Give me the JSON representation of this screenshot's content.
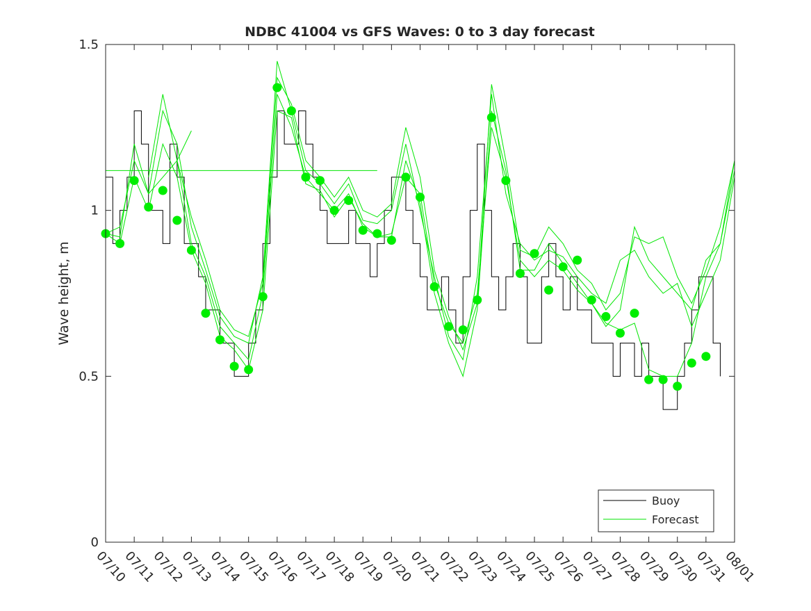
{
  "chart_data": {
    "type": "line",
    "title": "NDBC 41004 vs GFS Waves: 0 to 3 day forecast",
    "xlabel": "",
    "ylabel": "Wave height, m",
    "x_range_days": [
      0,
      22
    ],
    "ylim": [
      0,
      1.5
    ],
    "y_ticks": [
      0,
      0.5,
      1,
      1.5
    ],
    "y_tick_labels": [
      "0",
      "0.5",
      "1",
      "1.5"
    ],
    "x_tick_labels": [
      "07/10",
      "07/11",
      "07/12",
      "07/13",
      "07/14",
      "07/15",
      "07/16",
      "07/17",
      "07/18",
      "07/19",
      "07/20",
      "07/21",
      "07/22",
      "07/23",
      "07/24",
      "07/25",
      "07/26",
      "07/27",
      "07/28",
      "07/29",
      "07/30",
      "07/31",
      "08/01"
    ],
    "grid": false,
    "legend_position": "bottom-right",
    "colors": {
      "buoy": "#000000",
      "forecast": "#00e600",
      "markers": "#00ee00"
    },
    "legend": [
      "Buoy",
      "Forecast"
    ],
    "buoy_series": {
      "name": "Buoy",
      "day": [
        0,
        0.25,
        0.5,
        0.75,
        1,
        1.25,
        1.5,
        1.75,
        2,
        2.25,
        2.5,
        2.75,
        3,
        3.25,
        3.5,
        3.75,
        4,
        4.25,
        4.5,
        4.75,
        5,
        5.25,
        5.5,
        5.75,
        6,
        6.25,
        6.5,
        6.75,
        7,
        7.25,
        7.5,
        7.75,
        8,
        8.25,
        8.5,
        8.75,
        9,
        9.25,
        9.5,
        9.75,
        10,
        10.25,
        10.5,
        10.75,
        11,
        11.25,
        11.5,
        11.75,
        12,
        12.25,
        12.5,
        12.75,
        13,
        13.25,
        13.5,
        13.75,
        14,
        14.25,
        14.5,
        14.75,
        15,
        15.25,
        15.5,
        15.75,
        16,
        16.25,
        16.5,
        16.75,
        17,
        17.25,
        17.5,
        17.75,
        18,
        18.25,
        18.5,
        18.75,
        19,
        19.25,
        19.5,
        19.75,
        20,
        20.25,
        20.5,
        20.75,
        21,
        21.25,
        21.5
      ],
      "height_m": [
        1.1,
        0.9,
        1.0,
        1.1,
        1.3,
        1.2,
        1.0,
        1.0,
        0.9,
        1.2,
        1.1,
        0.9,
        0.9,
        0.8,
        0.7,
        0.7,
        0.6,
        0.6,
        0.5,
        0.5,
        0.6,
        0.7,
        0.9,
        1.1,
        1.3,
        1.2,
        1.2,
        1.3,
        1.2,
        1.1,
        1.0,
        0.9,
        0.9,
        0.9,
        1.0,
        0.9,
        0.9,
        0.8,
        0.9,
        1.0,
        1.1,
        1.1,
        1.0,
        0.9,
        0.8,
        0.7,
        0.7,
        0.8,
        0.7,
        0.6,
        0.8,
        1.0,
        1.2,
        1.0,
        0.8,
        0.7,
        0.8,
        0.9,
        0.8,
        0.6,
        0.6,
        0.8,
        0.9,
        0.8,
        0.7,
        0.8,
        0.7,
        0.7,
        0.6,
        0.6,
        0.6,
        0.5,
        0.6,
        0.6,
        0.5,
        0.6,
        0.5,
        0.5,
        0.4,
        0.4,
        0.5,
        0.6,
        0.7,
        0.8,
        0.8,
        0.6,
        0.5
      ]
    },
    "forecast_series": [
      {
        "day": [
          0,
          0.5,
          1,
          1.5,
          2,
          2.5,
          3,
          3.5,
          4,
          4.5,
          5,
          5.5,
          6,
          6.5,
          7,
          7.5,
          8,
          8.5,
          9,
          9.5,
          10,
          10.5,
          11,
          11.5,
          12,
          12.5,
          13,
          13.5,
          14,
          14.5,
          15,
          15.5,
          16,
          16.5,
          17,
          17.5,
          18,
          18.5,
          19,
          19.5,
          20,
          20.5,
          21,
          21.5,
          22
        ],
        "height_m": [
          0.93,
          0.95,
          1.15,
          1.05,
          1.1,
          1.15,
          0.9,
          0.8,
          0.65,
          0.6,
          0.55,
          0.75,
          1.35,
          1.25,
          1.1,
          1.05,
          1.0,
          1.05,
          0.95,
          0.92,
          0.93,
          1.1,
          1.05,
          0.78,
          0.66,
          0.6,
          0.75,
          1.25,
          1.1,
          0.85,
          0.8,
          0.85,
          0.82,
          0.76,
          0.72,
          0.66,
          0.64,
          0.66,
          0.52,
          0.5,
          0.5,
          0.6,
          0.8,
          0.9,
          1.15
        ]
      },
      {
        "day": [
          0,
          0.5,
          1,
          1.5,
          2,
          2.5,
          3,
          3.5,
          4,
          4.5,
          5,
          5.5,
          6,
          6.5,
          7,
          7.5,
          8,
          8.5,
          9,
          9.5,
          10,
          10.5,
          11,
          11.5,
          12,
          12.5,
          13,
          13.5,
          14,
          14.5,
          15,
          15.5,
          16,
          16.5,
          17,
          17.5,
          18,
          18.5,
          19,
          19.5,
          20,
          20.5,
          21,
          21.5,
          22
        ],
        "height_m": [
          0.93,
          0.92,
          1.2,
          1.05,
          1.3,
          1.2,
          0.95,
          0.82,
          0.68,
          0.62,
          0.6,
          0.8,
          1.45,
          1.3,
          1.12,
          1.08,
          1.02,
          1.08,
          0.97,
          0.96,
          1.0,
          1.2,
          1.0,
          0.8,
          0.62,
          0.55,
          0.8,
          1.35,
          1.05,
          0.9,
          0.85,
          0.88,
          0.86,
          0.8,
          0.75,
          0.72,
          0.85,
          0.88,
          0.8,
          0.75,
          0.78,
          0.65,
          0.75,
          0.85,
          1.1
        ]
      },
      {
        "day": [
          0,
          0.5,
          1,
          1.5,
          2,
          2.5,
          3,
          3.5,
          4,
          4.5,
          5,
          5.5,
          6,
          6.5,
          7,
          7.5,
          8,
          8.5,
          9,
          9.5,
          10,
          10.5,
          11,
          11.5,
          12,
          12.5,
          13,
          13.5,
          14,
          14.5,
          15,
          15.5,
          16,
          16.5,
          17,
          17.5,
          18,
          18.5,
          19,
          19.5,
          20,
          20.5,
          21,
          21.5,
          22
        ],
        "height_m": [
          0.93,
          0.9,
          1.1,
          1.0,
          1.2,
          1.1,
          0.88,
          0.78,
          0.62,
          0.58,
          0.52,
          0.7,
          1.3,
          1.28,
          1.08,
          1.06,
          0.98,
          1.04,
          0.96,
          0.92,
          0.92,
          1.15,
          1.02,
          0.75,
          0.6,
          0.5,
          0.7,
          1.3,
          1.12,
          0.82,
          0.82,
          0.9,
          0.84,
          0.78,
          0.72,
          0.65,
          0.7,
          0.95,
          0.85,
          0.8,
          0.75,
          0.7,
          0.85,
          0.9,
          1.12
        ]
      },
      {
        "day": [
          1.5,
          2,
          2.5,
          3,
          3.5,
          4,
          4.5,
          5,
          5.5,
          6,
          6.5,
          7,
          7.5,
          8,
          8.5,
          9,
          9.5,
          10,
          10.5,
          11,
          11.5,
          12,
          12.5,
          13,
          13.5,
          14,
          14.5,
          15,
          15.5,
          16,
          16.5,
          17,
          17.5,
          18,
          18.5,
          19,
          19.5,
          20,
          20.5,
          21,
          21.5,
          22
        ],
        "height_m": [
          1.1,
          1.35,
          1.15,
          0.98,
          0.85,
          0.7,
          0.64,
          0.62,
          0.78,
          1.4,
          1.32,
          1.15,
          1.1,
          1.04,
          1.1,
          1.0,
          0.98,
          1.02,
          1.25,
          1.1,
          0.82,
          0.68,
          0.58,
          0.72,
          1.38,
          1.15,
          0.88,
          0.86,
          0.95,
          0.9,
          0.82,
          0.78,
          0.7,
          0.75,
          0.92,
          0.9,
          0.92,
          0.8,
          0.72,
          0.82,
          0.95,
          1.15
        ]
      },
      {
        "day": [
          2.5,
          3
        ],
        "height_m": [
          1.15,
          1.24
        ]
      },
      {
        "day": [
          0,
          9.5
        ],
        "height_m": [
          1.12,
          1.12
        ]
      }
    ],
    "forecast_markers": {
      "day": [
        0,
        0.5,
        1,
        1.5,
        2,
        2.5,
        3,
        3.5,
        4,
        4.5,
        5,
        5.5,
        6,
        6.5,
        7,
        7.5,
        8,
        8.5,
        9,
        9.5,
        10,
        10.5,
        11,
        11.5,
        12,
        12.5,
        13,
        13.5,
        14,
        14.5,
        15,
        15.5,
        16,
        16.5,
        17,
        17.5,
        18,
        18.5,
        19,
        19.5,
        20,
        20.5,
        21
      ],
      "height_m": [
        0.93,
        0.9,
        1.09,
        1.01,
        1.06,
        0.97,
        0.88,
        0.69,
        0.61,
        0.53,
        0.52,
        0.74,
        1.37,
        1.3,
        1.1,
        1.09,
        1.0,
        1.03,
        0.94,
        0.93,
        0.91,
        1.1,
        1.04,
        0.77,
        0.65,
        0.64,
        0.73,
        1.28,
        1.09,
        0.81,
        0.87,
        0.76,
        0.83,
        0.85,
        0.73,
        0.68,
        0.63,
        0.69,
        0.49,
        0.49,
        0.47,
        0.54,
        0.56
      ]
    }
  }
}
